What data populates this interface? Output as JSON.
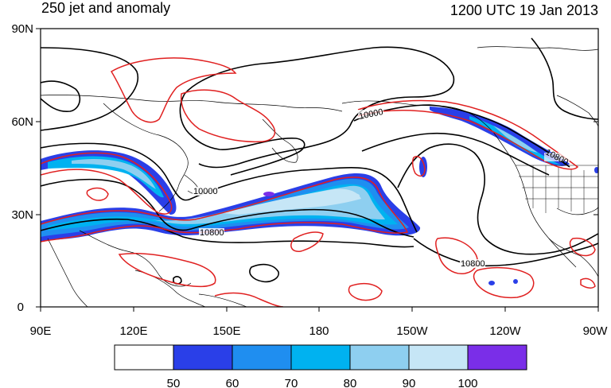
{
  "title_left": "250 jet and anomaly",
  "title_right": "1200 UTC 19 Jan 2013",
  "lat_labels": [
    "90N",
    "60N",
    "30N",
    "0"
  ],
  "lon_labels": [
    "90E",
    "120E",
    "150E",
    "180",
    "150W",
    "120W",
    "90W"
  ],
  "contour_labels": [
    "10000",
    "10800",
    "10800",
    "10800",
    "10000"
  ],
  "colorbar": {
    "levels": [
      "50",
      "60",
      "70",
      "80",
      "90",
      "100"
    ],
    "colors": [
      "#ffffff",
      "#2a3fe8",
      "#1f8ef0",
      "#00b2f0",
      "#8ecff0",
      "#c6e6f6",
      "#7a2ee8"
    ]
  },
  "colors": {
    "anomaly_contour": "#e02020",
    "height_contour": "#000000",
    "coastline": "#000000"
  }
}
